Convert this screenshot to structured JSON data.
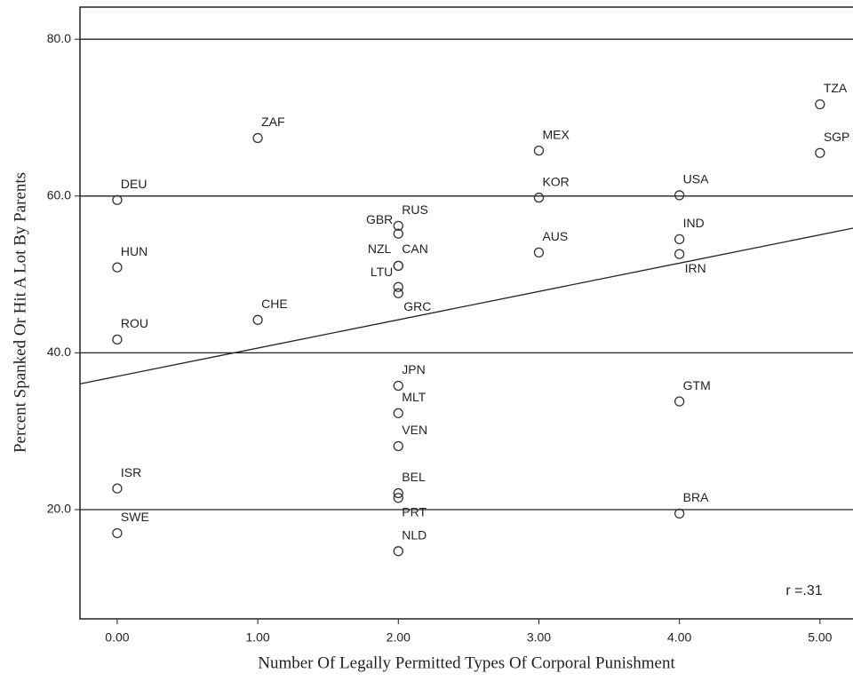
{
  "chart_data": {
    "type": "scatter",
    "x_label": "Number Of Legally Permitted Types Of  Corporal  Punishment",
    "y_label": "Percent  Spanked Or Hit A Lot By Parents",
    "annotation": "r =.31",
    "point_labels": [
      "TZA",
      "SGP",
      "ZAF",
      "MEX",
      "DEU",
      "KOR",
      "USA",
      "RUS",
      "GBR",
      "IND",
      "AUS",
      "IRN",
      "HUN",
      "NZL",
      "CAN",
      "LTU",
      "GRC",
      "CHE",
      "ROU",
      "JPN",
      "GTM",
      "MLT",
      "VEN",
      "ISR",
      "BEL",
      "PRT",
      "BRA",
      "SWE",
      "NLD"
    ],
    "x": [
      5,
      5,
      1,
      3,
      0,
      3,
      4,
      2,
      2,
      4,
      3,
      4,
      0,
      2,
      2,
      2,
      2,
      1,
      0,
      2,
      4,
      2,
      2,
      0,
      2,
      2,
      4,
      0,
      2
    ],
    "values": [
      71.7,
      65.5,
      67.4,
      65.8,
      59.5,
      59.8,
      60.1,
      56.2,
      55.2,
      54.5,
      52.8,
      52.6,
      50.9,
      51.1,
      51.1,
      48.4,
      47.6,
      44.2,
      41.7,
      35.8,
      33.8,
      32.3,
      28.1,
      22.7,
      22.1,
      21.5,
      19.5,
      17.0,
      14.7
    ],
    "fit_line": {
      "intercept": 37.0,
      "slope": 3.61
    },
    "xlim": [
      -0.265,
      5.235
    ],
    "ylim": [
      6.07,
      84.1
    ],
    "xticks": [
      {
        "value": 0,
        "label": "0.00"
      },
      {
        "value": 1,
        "label": "1.00"
      },
      {
        "value": 2,
        "label": "2.00"
      },
      {
        "value": 3,
        "label": "3.00"
      },
      {
        "value": 4,
        "label": "4.00"
      },
      {
        "value": 5,
        "label": "5.00"
      }
    ],
    "yticks": [
      {
        "value": 20,
        "label": "20.0"
      },
      {
        "value": 40,
        "label": "40.0"
      },
      {
        "value": 60,
        "label": "60.0"
      },
      {
        "value": 80,
        "label": "80.0"
      }
    ],
    "grid": true
  }
}
